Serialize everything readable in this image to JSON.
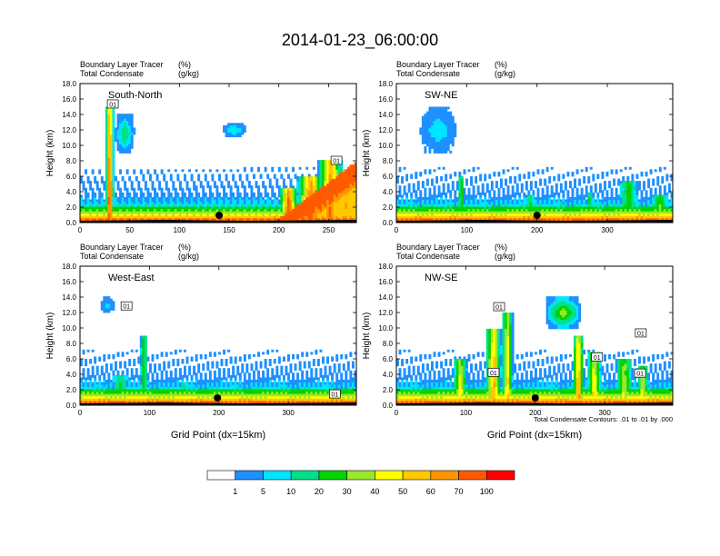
{
  "figure": {
    "title": "2014-01-23_06:00:00",
    "note": "Total Condensate Contours: .01 to .01 by .000"
  },
  "colorbar": {
    "colors": [
      "#ffffff",
      "#1e90ff",
      "#00e5ff",
      "#00e08a",
      "#00d400",
      "#9be82a",
      "#ffff00",
      "#ffc800",
      "#ff9600",
      "#ff5a00",
      "#ff0000"
    ],
    "labels": [
      "1",
      "5",
      "10",
      "20",
      "30",
      "40",
      "50",
      "60",
      "70",
      "100"
    ]
  },
  "chart_data": [
    {
      "type": "heatmap",
      "title": "South-North",
      "header_left": [
        "Boundary Layer Tracer",
        "Total Condensate"
      ],
      "header_right": [
        "(%)",
        "(g/kg)"
      ],
      "ylabel": "Height (km)",
      "xlabel": "",
      "xlim": [
        0,
        278
      ],
      "ylim": [
        0,
        18
      ],
      "xticks": [
        "0",
        "50",
        "100",
        "150",
        "200",
        "250"
      ],
      "yticks": [
        "0.0",
        "2.0",
        "4.0",
        "6.0",
        "8.0",
        "10.0",
        "12.0",
        "14.0",
        "16.0",
        "18.0"
      ],
      "marker_x": 140,
      "contour_labels": [
        {
          "text": "01",
          "x": 33,
          "y": 15.3
        },
        {
          "text": "01",
          "x": 258,
          "y": 8.0
        }
      ],
      "tracer_units": "%",
      "condensate_units": "g/kg"
    },
    {
      "type": "heatmap",
      "title": "SW-NE",
      "header_left": [
        "Boundary Layer Tracer",
        "Total Condensate"
      ],
      "header_right": [
        "(%)",
        "(g/kg)"
      ],
      "ylabel": "Height (km)",
      "xlabel": "",
      "xlim": [
        0,
        393
      ],
      "ylim": [
        0,
        18
      ],
      "xticks": [
        "0",
        "100",
        "200",
        "300"
      ],
      "yticks": [
        "0.0",
        "2.0",
        "4.0",
        "6.0",
        "8.0",
        "10.0",
        "12.0",
        "14.0",
        "16.0",
        "18.0"
      ],
      "marker_x": 200,
      "contour_labels": [],
      "tracer_units": "%",
      "condensate_units": "g/kg"
    },
    {
      "type": "heatmap",
      "title": "West-East",
      "header_left": [
        "Boundary Layer Tracer",
        "Total Condensate"
      ],
      "header_right": [
        "(%)",
        "(g/kg)"
      ],
      "ylabel": "Height (km)",
      "xlabel": "Grid Point (dx=15km)",
      "xlim": [
        0,
        398
      ],
      "ylim": [
        0,
        18
      ],
      "xticks": [
        "0",
        "100",
        "200",
        "300"
      ],
      "yticks": [
        "0.0",
        "2.0",
        "4.0",
        "6.0",
        "8.0",
        "10.0",
        "12.0",
        "14.0",
        "16.0",
        "18.0"
      ],
      "marker_x": 198,
      "contour_labels": [
        {
          "text": "01",
          "x": 67,
          "y": 12.8
        },
        {
          "text": "01",
          "x": 367,
          "y": 1.4
        }
      ],
      "tracer_units": "%",
      "condensate_units": "g/kg"
    },
    {
      "type": "heatmap",
      "title": "NW-SE",
      "header_left": [
        "Boundary Layer Tracer",
        "Total Condensate"
      ],
      "header_right": [
        "(%)",
        "(g/kg)"
      ],
      "ylabel": "Height (km)",
      "xlabel": "Grid Point (dx=15km)",
      "xlim": [
        0,
        398
      ],
      "ylim": [
        0,
        18
      ],
      "xticks": [
        "0",
        "100",
        "200",
        "300"
      ],
      "yticks": [
        "0.0",
        "2.0",
        "4.0",
        "6.0",
        "8.0",
        "10.0",
        "12.0",
        "14.0",
        "16.0",
        "18.0"
      ],
      "marker_x": 200,
      "contour_labels": [
        {
          "text": "01",
          "x": 148,
          "y": 12.7
        },
        {
          "text": "01",
          "x": 140,
          "y": 4.2
        },
        {
          "text": "01",
          "x": 289,
          "y": 6.2
        },
        {
          "text": "01",
          "x": 352,
          "y": 9.3
        },
        {
          "text": "01",
          "x": 351,
          "y": 4.1
        }
      ],
      "tracer_units": "%",
      "condensate_units": "g/kg"
    }
  ]
}
